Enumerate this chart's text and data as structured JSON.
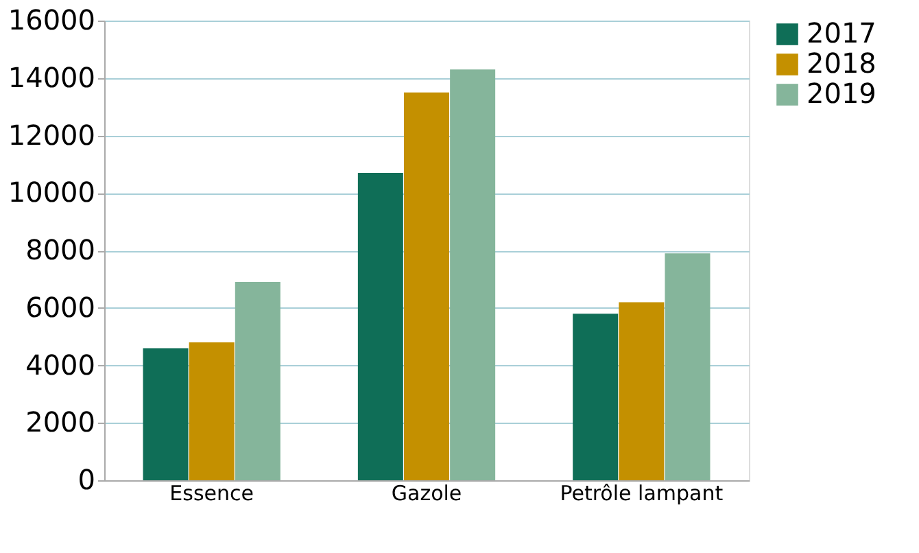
{
  "chart_data": {
    "type": "bar",
    "categories": [
      "Essence",
      "Gazole",
      "Petrôle lampant"
    ],
    "series": [
      {
        "name": "2017",
        "color": "#0f6e57",
        "values": [
          4600,
          10700,
          5800
        ]
      },
      {
        "name": "2018",
        "color": "#c49000",
        "values": [
          4800,
          13500,
          6200
        ]
      },
      {
        "name": "2019",
        "color": "#85b59b",
        "values": [
          6900,
          14300,
          7900
        ]
      }
    ],
    "ylim": [
      0,
      16000
    ],
    "yticks": [
      0,
      2000,
      4000,
      6000,
      8000,
      10000,
      12000,
      14000,
      16000
    ],
    "grid": "y",
    "legend": "right"
  }
}
